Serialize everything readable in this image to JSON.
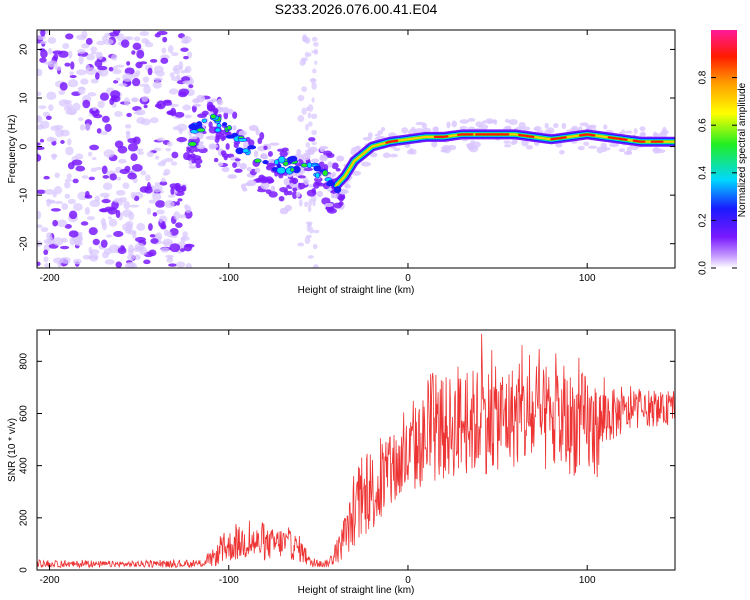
{
  "title": "S233.2026.076.00.41.E04",
  "colors": {
    "snr_line": "#ee3333",
    "scatter_purple": "#7a1aff",
    "scatter_faint": "#d9c6ff"
  },
  "chart_data": [
    {
      "type": "heatmap",
      "xlabel": "Height of straight line (km)",
      "ylabel": "Frequency (Hz)",
      "xlim": [
        -207,
        149
      ],
      "ylim": [
        -25,
        24
      ],
      "xticks": [
        -200,
        -100,
        0,
        100
      ],
      "yticks": [
        -20,
        -10,
        0,
        10,
        20
      ],
      "grid": false,
      "colorbar": {
        "label": "Normalized spectral amplitude",
        "range": [
          0.0,
          1.0
        ],
        "ticks": [
          "0.0",
          "0.2",
          "0.4",
          "0.6",
          "0.8"
        ],
        "colormap": "rainbow: white-violet-purple-blue-cyan-green-yellow-orange-red-magenta"
      },
      "ridge": {
        "description": "dominant frequency track (Hz) vs height (km)",
        "x": [
          -120,
          -110,
          -100,
          -90,
          -80,
          -70,
          -60,
          -50,
          -45,
          -40,
          -35,
          -30,
          -20,
          -10,
          0,
          10,
          20,
          30,
          40,
          50,
          60,
          70,
          80,
          90,
          100,
          110,
          120,
          130,
          140,
          149
        ],
        "y": [
          4,
          6,
          3,
          -1,
          -3,
          -4,
          -3.5,
          -5,
          -7,
          -8,
          -6,
          -3,
          0,
          1,
          1.5,
          2,
          2,
          2.5,
          2.5,
          2.5,
          2.5,
          2,
          1.5,
          2,
          2.5,
          2,
          1.5,
          1,
          1,
          1
        ]
      }
    },
    {
      "type": "line",
      "xlabel": "Height of straight line (km)",
      "ylabel": "SNR (10 * v/v)",
      "xlim": [
        -207,
        149
      ],
      "ylim": [
        0,
        920
      ],
      "xticks": [
        -200,
        -100,
        0,
        100
      ],
      "yticks": [
        0,
        200,
        400,
        600,
        800
      ],
      "grid": false,
      "series": [
        {
          "name": "SNR",
          "envelope_x": [
            -207,
            -120,
            -115,
            -110,
            -100,
            -90,
            -80,
            -70,
            -60,
            -55,
            -50,
            -45,
            -40,
            -35,
            -30,
            -25,
            -20,
            -15,
            -10,
            -5,
            0,
            5,
            10,
            20,
            30,
            40,
            50,
            60,
            70,
            80,
            90,
            100,
            105,
            110,
            120,
            130,
            140,
            149
          ],
          "envelope_mean": [
            22,
            22,
            25,
            40,
            90,
            110,
            95,
            105,
            80,
            30,
            22,
            25,
            60,
            130,
            210,
            260,
            300,
            320,
            360,
            400,
            430,
            470,
            500,
            540,
            560,
            570,
            580,
            590,
            580,
            560,
            560,
            560,
            520,
            590,
            600,
            610,
            610,
            620
          ],
          "envelope_amplitude": [
            12,
            12,
            14,
            30,
            60,
            70,
            60,
            60,
            50,
            20,
            12,
            15,
            40,
            80,
            120,
            140,
            150,
            150,
            150,
            150,
            160,
            170,
            180,
            200,
            200,
            210,
            200,
            200,
            200,
            200,
            200,
            200,
            180,
            120,
            80,
            60,
            60,
            60
          ],
          "peak_value": 905
        }
      ]
    }
  ]
}
